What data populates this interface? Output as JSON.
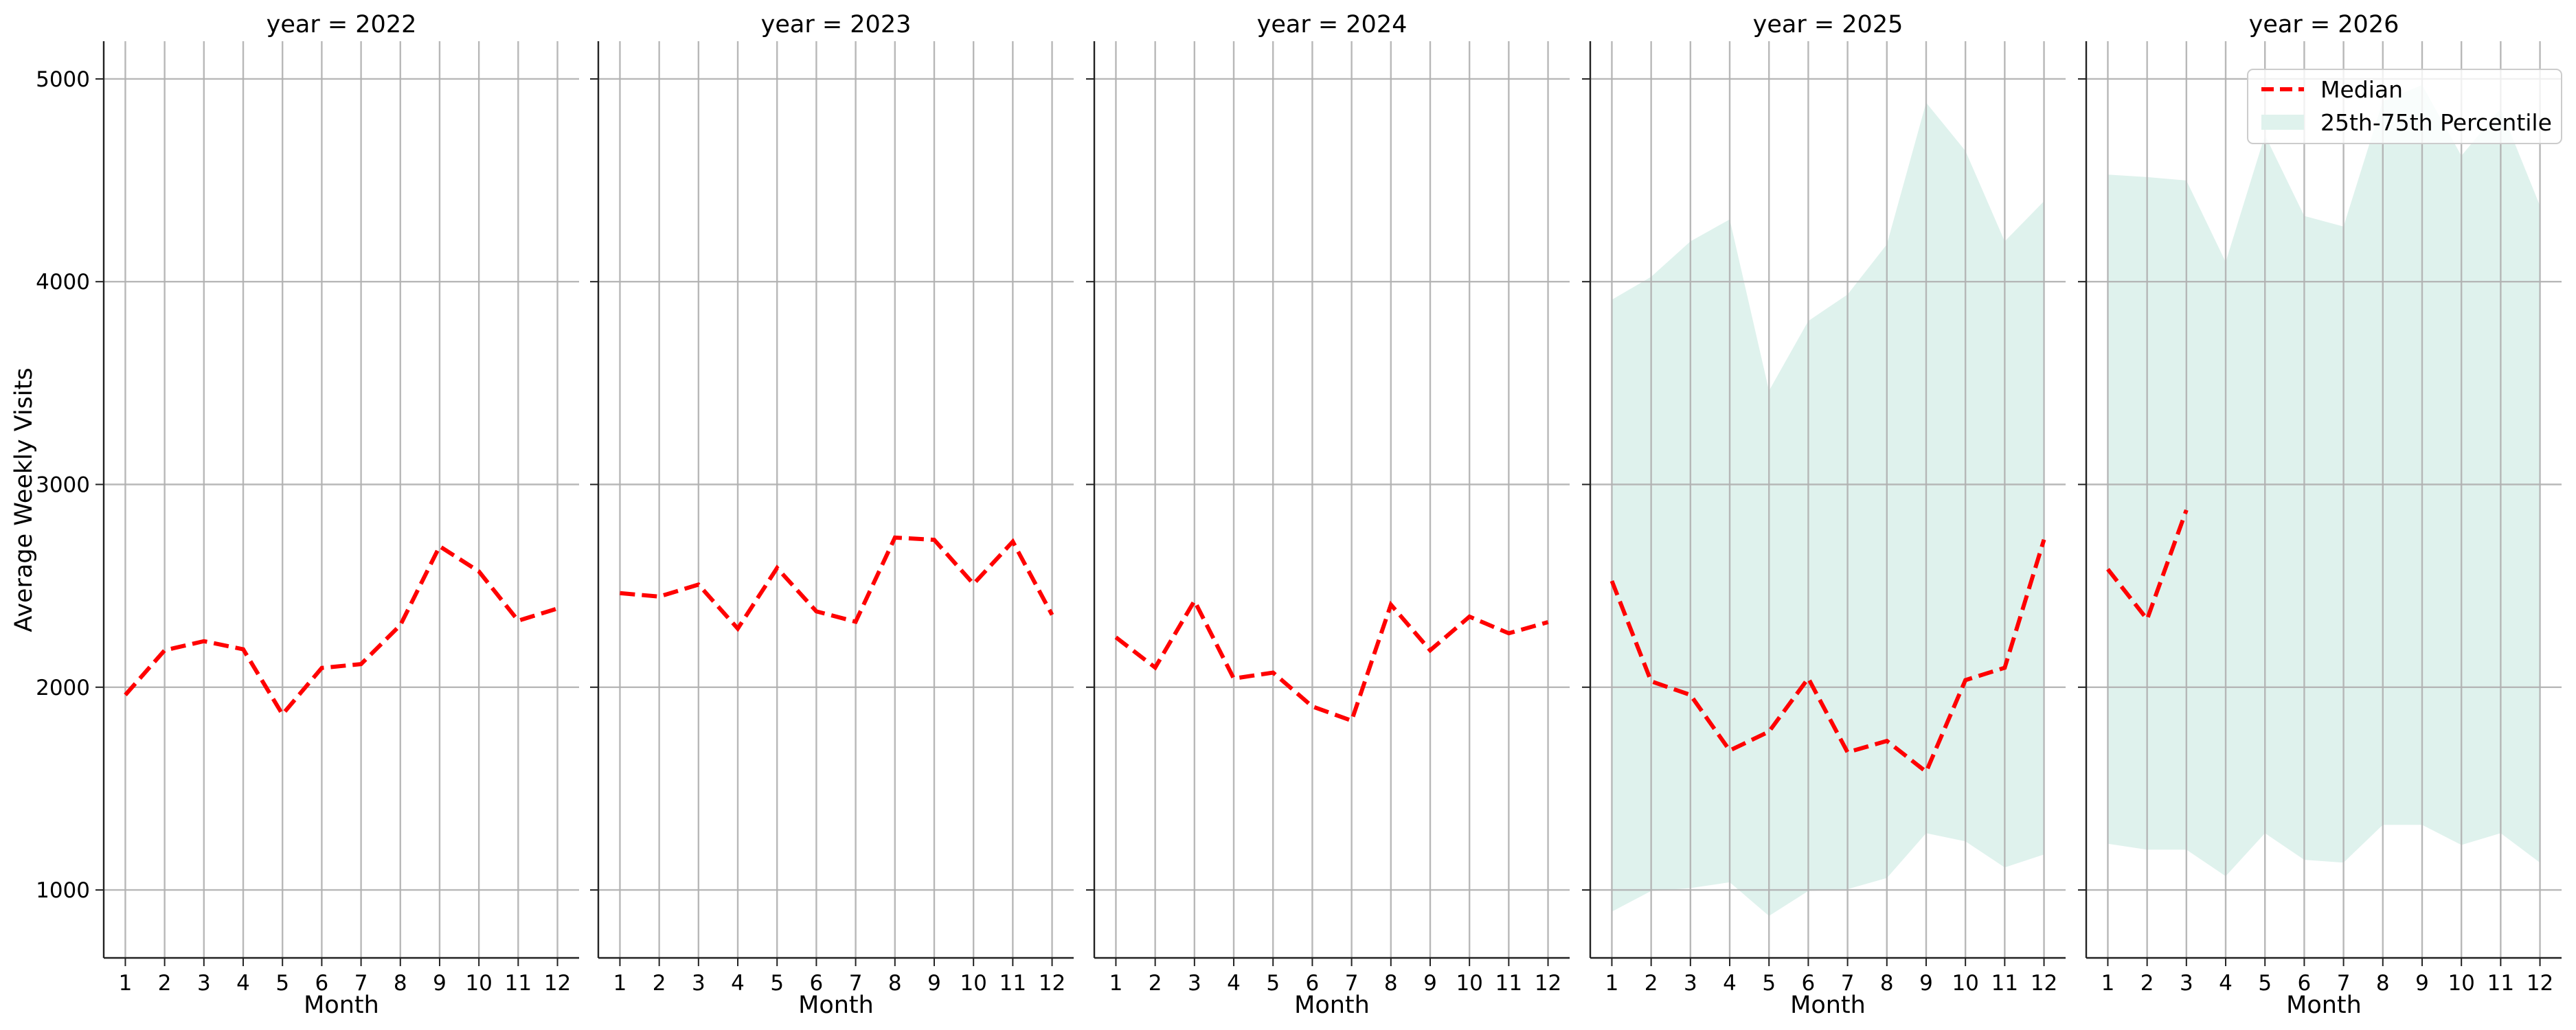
{
  "chart_data": {
    "type": "line",
    "facet_label": "year",
    "ylabel": "Average Weekly Visits",
    "xlabel": "Month",
    "ylim": [
      665,
      5186
    ],
    "xlim": [
      0.45,
      12.55
    ],
    "yticks": [
      1000,
      2000,
      3000,
      4000,
      5000
    ],
    "xticks": [
      1,
      2,
      3,
      4,
      5,
      6,
      7,
      8,
      9,
      10,
      11,
      12
    ],
    "grid": true,
    "legend": {
      "placement": "top-right",
      "entries": [
        "Median",
        "25th-75th Percentile"
      ]
    },
    "colors": {
      "median": "#ff0000",
      "band": "#dff2ed",
      "grid": "#b0b0b0"
    },
    "panels": [
      {
        "title": "year = 2022",
        "median": [
          1962,
          2182,
          2227,
          2187,
          1866,
          2095,
          2114,
          2306,
          2695,
          2571,
          2328,
          2388
        ],
        "p25": null,
        "p75": null
      },
      {
        "title": "year = 2023",
        "median": [
          2464,
          2447,
          2506,
          2289,
          2588,
          2374,
          2323,
          2738,
          2727,
          2509,
          2718,
          2357
        ],
        "p25": null,
        "p75": null
      },
      {
        "title": "year = 2024",
        "median": [
          2246,
          2097,
          2426,
          2043,
          2072,
          1905,
          1835,
          2407,
          2182,
          2348,
          2266,
          2321
        ],
        "p25": null,
        "p75": null
      },
      {
        "title": "year = 2025",
        "median": [
          2524,
          2029,
          1962,
          1688,
          1781,
          2044,
          1679,
          1735,
          1583,
          2035,
          2096,
          2728
        ],
        "p25": [
          893,
          995,
          1009,
          1038,
          872,
          995,
          1004,
          1059,
          1280,
          1240,
          1111,
          1175
        ],
        "p75": [
          3911,
          4024,
          4199,
          4307,
          3462,
          3806,
          3937,
          4184,
          4883,
          4645,
          4199,
          4397
        ]
      },
      {
        "title": "year = 2026",
        "median": [
          2582,
          2335,
          2874,
          null,
          null,
          null,
          null,
          null,
          null,
          null,
          null,
          null
        ],
        "p25": [
          1228,
          1199,
          1199,
          1068,
          1280,
          1149,
          1135,
          1321,
          1321,
          1222,
          1280,
          1135
        ],
        "p75": [
          4528,
          4516,
          4499,
          4097,
          4723,
          4324,
          4272,
          4890,
          4970,
          4621,
          4854,
          4374
        ]
      }
    ]
  }
}
